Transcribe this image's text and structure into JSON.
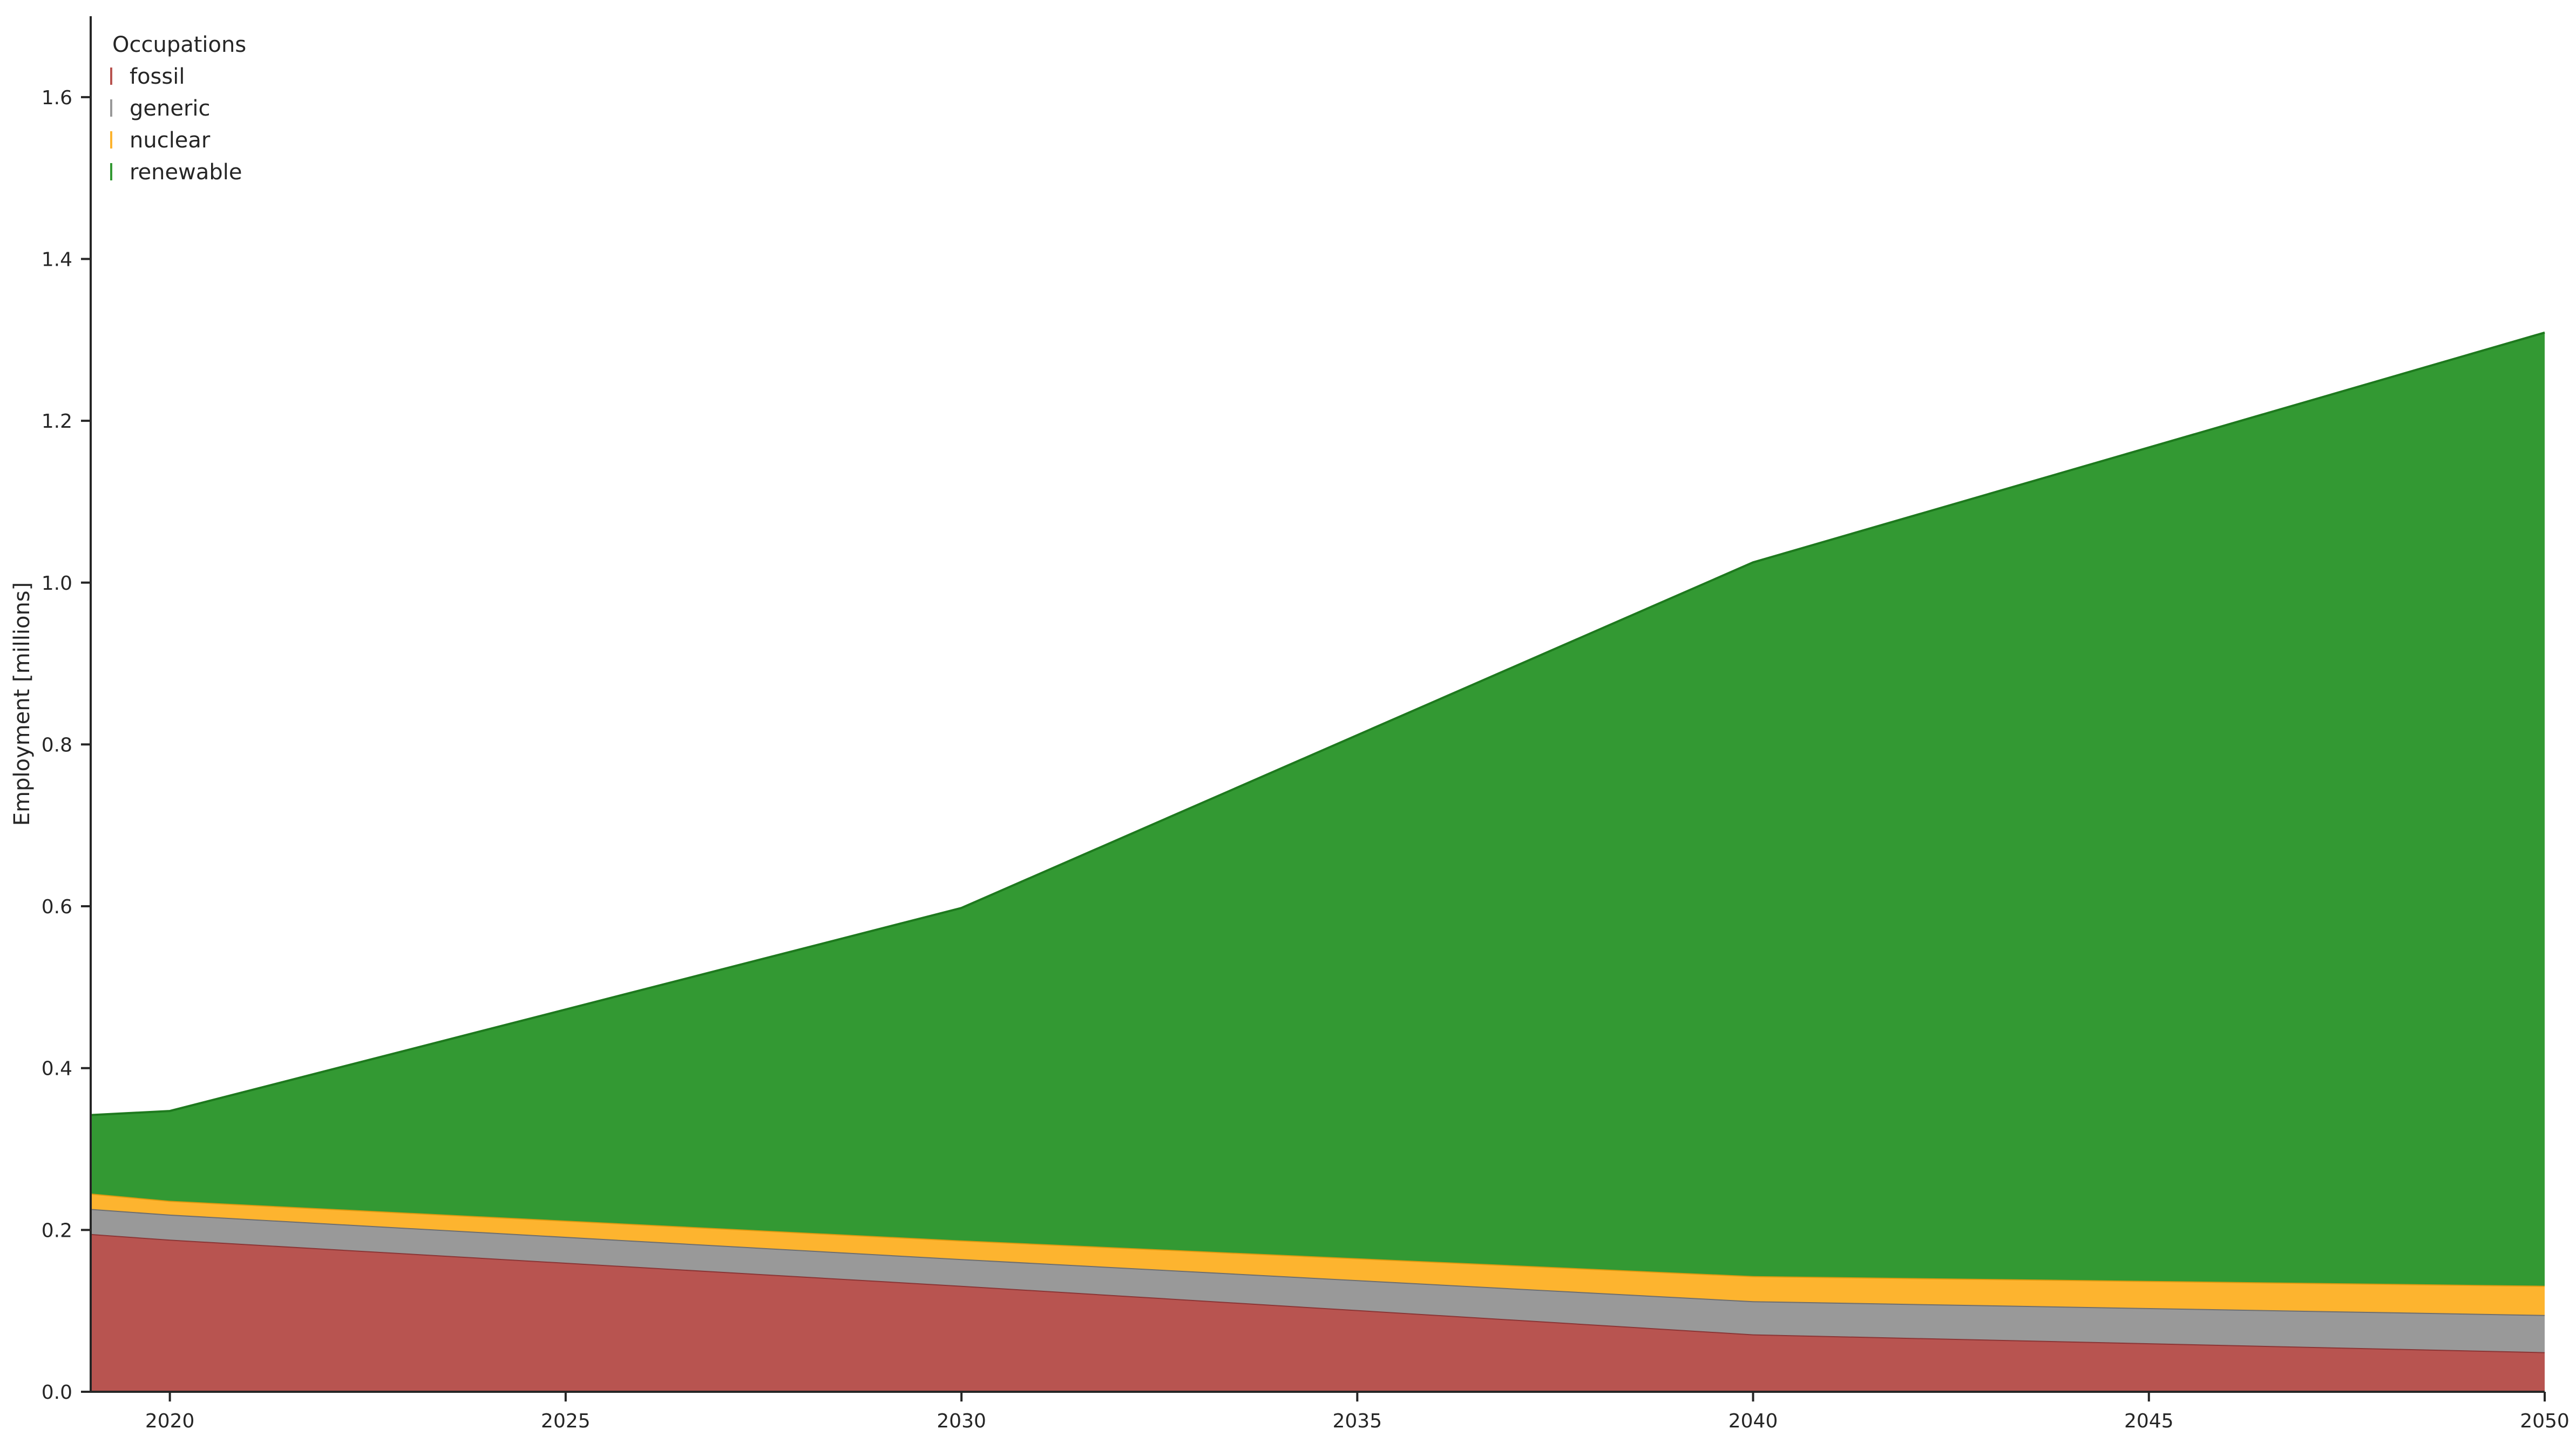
{
  "chart_data": {
    "type": "area",
    "stacked": true,
    "title": "",
    "xlabel": "",
    "ylabel": "Employment [millions]",
    "xlim": [
      2019,
      2050
    ],
    "ylim": [
      0,
      1.7
    ],
    "x_ticks": [
      "2020",
      "2025",
      "2030",
      "2035",
      "2040",
      "2045",
      "2050"
    ],
    "y_ticks": [
      "0.0",
      "0.2",
      "0.4",
      "0.6",
      "0.8",
      "1.0",
      "1.2",
      "1.4",
      "1.6"
    ],
    "grid": false,
    "legend": {
      "title": "Occupations",
      "placement": "top-left",
      "entries": [
        "fossil",
        "generic",
        "nuclear",
        "renewable"
      ]
    },
    "x": [
      2019,
      2020,
      2030,
      2040,
      2050
    ],
    "series": [
      {
        "name": "fossil",
        "color": "#b85450",
        "edge_color": "#8b3535",
        "values": [
          0.195,
          0.188,
          0.131,
          0.071,
          0.049
        ]
      },
      {
        "name": "generic",
        "color": "#999999",
        "edge_color": "#6e6e6e",
        "values": [
          0.031,
          0.031,
          0.033,
          0.041,
          0.046
        ]
      },
      {
        "name": "nuclear",
        "color": "#fdb42f",
        "edge_color": "#e09a10",
        "values": [
          0.019,
          0.017,
          0.023,
          0.031,
          0.036
        ]
      },
      {
        "name": "renewable",
        "color": "#339933",
        "edge_color": "#1e7a1e",
        "values": [
          0.097,
          0.111,
          0.411,
          0.882,
          1.178
        ]
      }
    ]
  }
}
